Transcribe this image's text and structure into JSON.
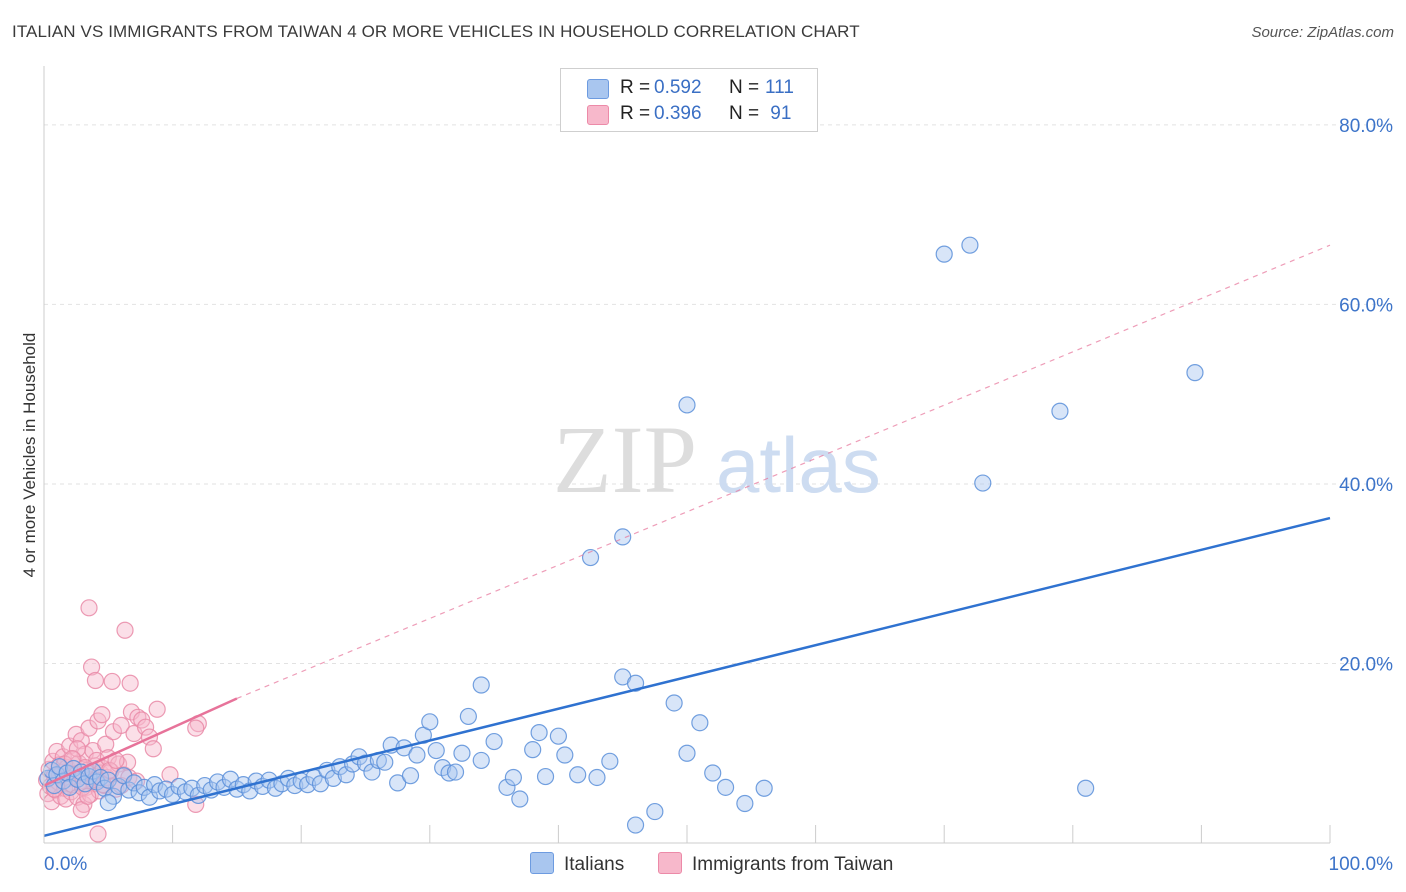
{
  "title": "ITALIAN VS IMMIGRANTS FROM TAIWAN 4 OR MORE VEHICLES IN HOUSEHOLD CORRELATION CHART",
  "source": "Source: ZipAtlas.com",
  "watermark": {
    "zip": "ZIP",
    "atlas": "atlas"
  },
  "legend": {
    "r_label": "R =",
    "n_label": "N =",
    "rows": [
      {
        "name": "Italians",
        "r": "0.592",
        "n": "111",
        "color": "#a9c6ef",
        "stroke": "#6d9be0"
      },
      {
        "name": "Immigrants from Taiwan",
        "r": "0.396",
        "n": " 91",
        "color": "#f7b8cb",
        "stroke": "#ec8aa8"
      }
    ]
  },
  "colors": {
    "blue_fill": "#a9c6ef",
    "blue_stroke": "#5b8fd9",
    "blue_line": "#2f72d0",
    "pink_fill": "#f7b8cb",
    "pink_stroke": "#e98aa7",
    "pink_line": "#e7739a",
    "axis_text": "#3d74c9",
    "grid": "#e2e2e2"
  },
  "chart_data": {
    "type": "scatter",
    "title": "ITALIAN VS IMMIGRANTS FROM TAIWAN 4 OR MORE VEHICLES IN HOUSEHOLD CORRELATION CHART",
    "xlabel": "",
    "ylabel": "4 or more Vehicles in Household",
    "xlim": [
      0,
      100
    ],
    "ylim": [
      0,
      85
    ],
    "x_tick_labels": [
      "0.0%",
      "100.0%"
    ],
    "y_ticks": [
      20,
      40,
      60,
      80
    ],
    "y_tick_labels": [
      "20.0%",
      "40.0%",
      "60.0%",
      "80.0%"
    ],
    "grid": true,
    "series": [
      {
        "name": "Italians",
        "points": [
          [
            0.3,
            7.2
          ],
          [
            0.6,
            8.1
          ],
          [
            0.8,
            6.4
          ],
          [
            1.0,
            7.6
          ],
          [
            1.2,
            8.5
          ],
          [
            1.5,
            6.9
          ],
          [
            1.8,
            7.8
          ],
          [
            2.0,
            6.2
          ],
          [
            2.3,
            8.3
          ],
          [
            2.6,
            7.1
          ],
          [
            2.9,
            7.9
          ],
          [
            3.2,
            6.6
          ],
          [
            3.5,
            7.4
          ],
          [
            3.8,
            8.0
          ],
          [
            4.1,
            6.8
          ],
          [
            4.4,
            7.3
          ],
          [
            4.7,
            6.1
          ],
          [
            5.0,
            7.0
          ],
          [
            5.4,
            5.2
          ],
          [
            5.8,
            6.3
          ],
          [
            6.2,
            7.5
          ],
          [
            6.6,
            5.9
          ],
          [
            7.0,
            6.7
          ],
          [
            7.4,
            5.6
          ],
          [
            7.8,
            6.2
          ],
          [
            8.2,
            5.1
          ],
          [
            8.6,
            6.5
          ],
          [
            9.0,
            5.8
          ],
          [
            9.5,
            6.0
          ],
          [
            10.0,
            5.4
          ],
          [
            10.5,
            6.3
          ],
          [
            11.0,
            5.7
          ],
          [
            11.5,
            6.1
          ],
          [
            12.0,
            5.3
          ],
          [
            12.5,
            6.4
          ],
          [
            13.0,
            5.9
          ],
          [
            13.5,
            6.8
          ],
          [
            14.0,
            6.2
          ],
          [
            14.5,
            7.1
          ],
          [
            15.0,
            6.0
          ],
          [
            15.5,
            6.5
          ],
          [
            16.0,
            5.8
          ],
          [
            16.5,
            6.9
          ],
          [
            17.0,
            6.3
          ],
          [
            17.5,
            7.0
          ],
          [
            18.0,
            6.1
          ],
          [
            18.5,
            6.6
          ],
          [
            19.0,
            7.2
          ],
          [
            19.5,
            6.4
          ],
          [
            20.0,
            6.9
          ],
          [
            20.5,
            6.5
          ],
          [
            21.0,
            7.3
          ],
          [
            21.5,
            6.6
          ],
          [
            22.0,
            8.1
          ],
          [
            22.5,
            7.2
          ],
          [
            23.0,
            8.5
          ],
          [
            23.5,
            7.6
          ],
          [
            24.0,
            8.8
          ],
          [
            24.5,
            9.6
          ],
          [
            25.0,
            8.9
          ],
          [
            25.5,
            7.9
          ],
          [
            26.0,
            9.2
          ],
          [
            26.5,
            9.0
          ],
          [
            27.0,
            10.9
          ],
          [
            27.5,
            6.7
          ],
          [
            28.0,
            10.6
          ],
          [
            28.5,
            7.5
          ],
          [
            29.0,
            9.8
          ],
          [
            29.5,
            12.0
          ],
          [
            30.0,
            13.5
          ],
          [
            30.5,
            10.3
          ],
          [
            31.0,
            8.4
          ],
          [
            31.5,
            7.8
          ],
          [
            32.0,
            7.9
          ],
          [
            32.5,
            10.0
          ],
          [
            33.0,
            14.1
          ],
          [
            34.0,
            9.2
          ],
          [
            35.0,
            11.3
          ],
          [
            36.0,
            6.2
          ],
          [
            36.5,
            7.3
          ],
          [
            37.0,
            4.9
          ],
          [
            38.0,
            10.4
          ],
          [
            38.5,
            12.3
          ],
          [
            39.0,
            7.4
          ],
          [
            40.0,
            11.9
          ],
          [
            40.5,
            9.8
          ],
          [
            41.5,
            7.6
          ],
          [
            43.0,
            7.3
          ],
          [
            44.0,
            9.1
          ],
          [
            45.0,
            18.5
          ],
          [
            46.0,
            17.8
          ],
          [
            49.0,
            15.6
          ],
          [
            50.0,
            10.0
          ],
          [
            51.0,
            13.4
          ],
          [
            52.0,
            7.8
          ],
          [
            53.0,
            6.2
          ],
          [
            54.5,
            4.4
          ],
          [
            56.0,
            6.1
          ],
          [
            47.5,
            3.5
          ],
          [
            46.0,
            2.0
          ],
          [
            34.0,
            17.6
          ],
          [
            42.5,
            31.8
          ],
          [
            45.0,
            34.1
          ],
          [
            50.0,
            48.8
          ],
          [
            70.0,
            65.6
          ],
          [
            72.0,
            66.6
          ],
          [
            73.0,
            40.1
          ],
          [
            79.0,
            48.1
          ],
          [
            89.5,
            52.4
          ],
          [
            81.0,
            6.1
          ],
          [
            5.0,
            4.5
          ]
        ],
        "trend_line": [
          [
            0,
            0.8
          ],
          [
            100,
            36.2
          ]
        ]
      },
      {
        "name": "Immigrants from Taiwan",
        "points": [
          [
            0.2,
            7.0
          ],
          [
            0.3,
            5.5
          ],
          [
            0.4,
            8.2
          ],
          [
            0.5,
            6.3
          ],
          [
            0.6,
            4.6
          ],
          [
            0.7,
            9.1
          ],
          [
            0.8,
            7.5
          ],
          [
            0.9,
            5.9
          ],
          [
            1.0,
            10.2
          ],
          [
            1.1,
            6.8
          ],
          [
            1.2,
            8.7
          ],
          [
            1.3,
            5.2
          ],
          [
            1.4,
            7.9
          ],
          [
            1.5,
            9.6
          ],
          [
            1.6,
            6.1
          ],
          [
            1.7,
            4.9
          ],
          [
            1.8,
            8.4
          ],
          [
            1.9,
            7.2
          ],
          [
            2.0,
            10.8
          ],
          [
            2.1,
            5.7
          ],
          [
            2.2,
            6.5
          ],
          [
            2.3,
            9.3
          ],
          [
            2.4,
            7.7
          ],
          [
            2.5,
            12.1
          ],
          [
            2.6,
            5.1
          ],
          [
            2.7,
            8.9
          ],
          [
            2.8,
            6.9
          ],
          [
            2.9,
            11.4
          ],
          [
            3.0,
            7.4
          ],
          [
            3.1,
            4.3
          ],
          [
            3.2,
            9.9
          ],
          [
            3.3,
            6.2
          ],
          [
            3.4,
            8.1
          ],
          [
            3.5,
            12.8
          ],
          [
            3.6,
            5.4
          ],
          [
            3.7,
            7.1
          ],
          [
            3.8,
            10.3
          ],
          [
            3.9,
            6.6
          ],
          [
            4.0,
            8.6
          ],
          [
            4.1,
            9.2
          ],
          [
            4.2,
            13.6
          ],
          [
            4.3,
            5.8
          ],
          [
            4.4,
            7.8
          ],
          [
            4.5,
            14.3
          ],
          [
            4.6,
            8.3
          ],
          [
            4.7,
            6.4
          ],
          [
            4.8,
            11.0
          ],
          [
            4.9,
            7.3
          ],
          [
            5.0,
            9.5
          ],
          [
            5.2,
            8.0
          ],
          [
            5.4,
            12.4
          ],
          [
            5.6,
            6.0
          ],
          [
            5.8,
            8.8
          ],
          [
            6.0,
            13.1
          ],
          [
            6.2,
            7.6
          ],
          [
            6.5,
            9.0
          ],
          [
            6.8,
            14.6
          ],
          [
            7.0,
            12.2
          ],
          [
            7.3,
            14.0
          ],
          [
            7.6,
            13.7
          ],
          [
            7.9,
            12.9
          ],
          [
            8.2,
            11.8
          ],
          [
            8.5,
            10.5
          ],
          [
            8.8,
            14.9
          ],
          [
            12.0,
            13.3
          ],
          [
            11.8,
            12.8
          ],
          [
            3.5,
            26.2
          ],
          [
            6.3,
            23.7
          ],
          [
            3.7,
            19.6
          ],
          [
            4.0,
            18.1
          ],
          [
            5.3,
            18.0
          ],
          [
            6.7,
            17.8
          ],
          [
            2.6,
            10.5
          ],
          [
            3.2,
            8.4
          ],
          [
            4.1,
            7.0
          ],
          [
            4.6,
            6.5
          ],
          [
            5.1,
            8.1
          ],
          [
            6.0,
            6.4
          ],
          [
            6.6,
            7.3
          ],
          [
            7.2,
            6.9
          ],
          [
            9.8,
            7.6
          ],
          [
            11.8,
            4.3
          ],
          [
            2.9,
            3.7
          ],
          [
            4.2,
            1.0
          ],
          [
            1.2,
            7.5
          ],
          [
            0.8,
            6.0
          ],
          [
            1.6,
            8.8
          ],
          [
            2.2,
            9.4
          ],
          [
            3.0,
            6.2
          ],
          [
            3.4,
            5.2
          ],
          [
            5.6,
            9.2
          ]
        ],
        "trend_line": [
          [
            0,
            6.4
          ],
          [
            15,
            16.1
          ]
        ],
        "trend_extension": [
          [
            15,
            16.1
          ],
          [
            100,
            66.6
          ]
        ]
      }
    ]
  }
}
